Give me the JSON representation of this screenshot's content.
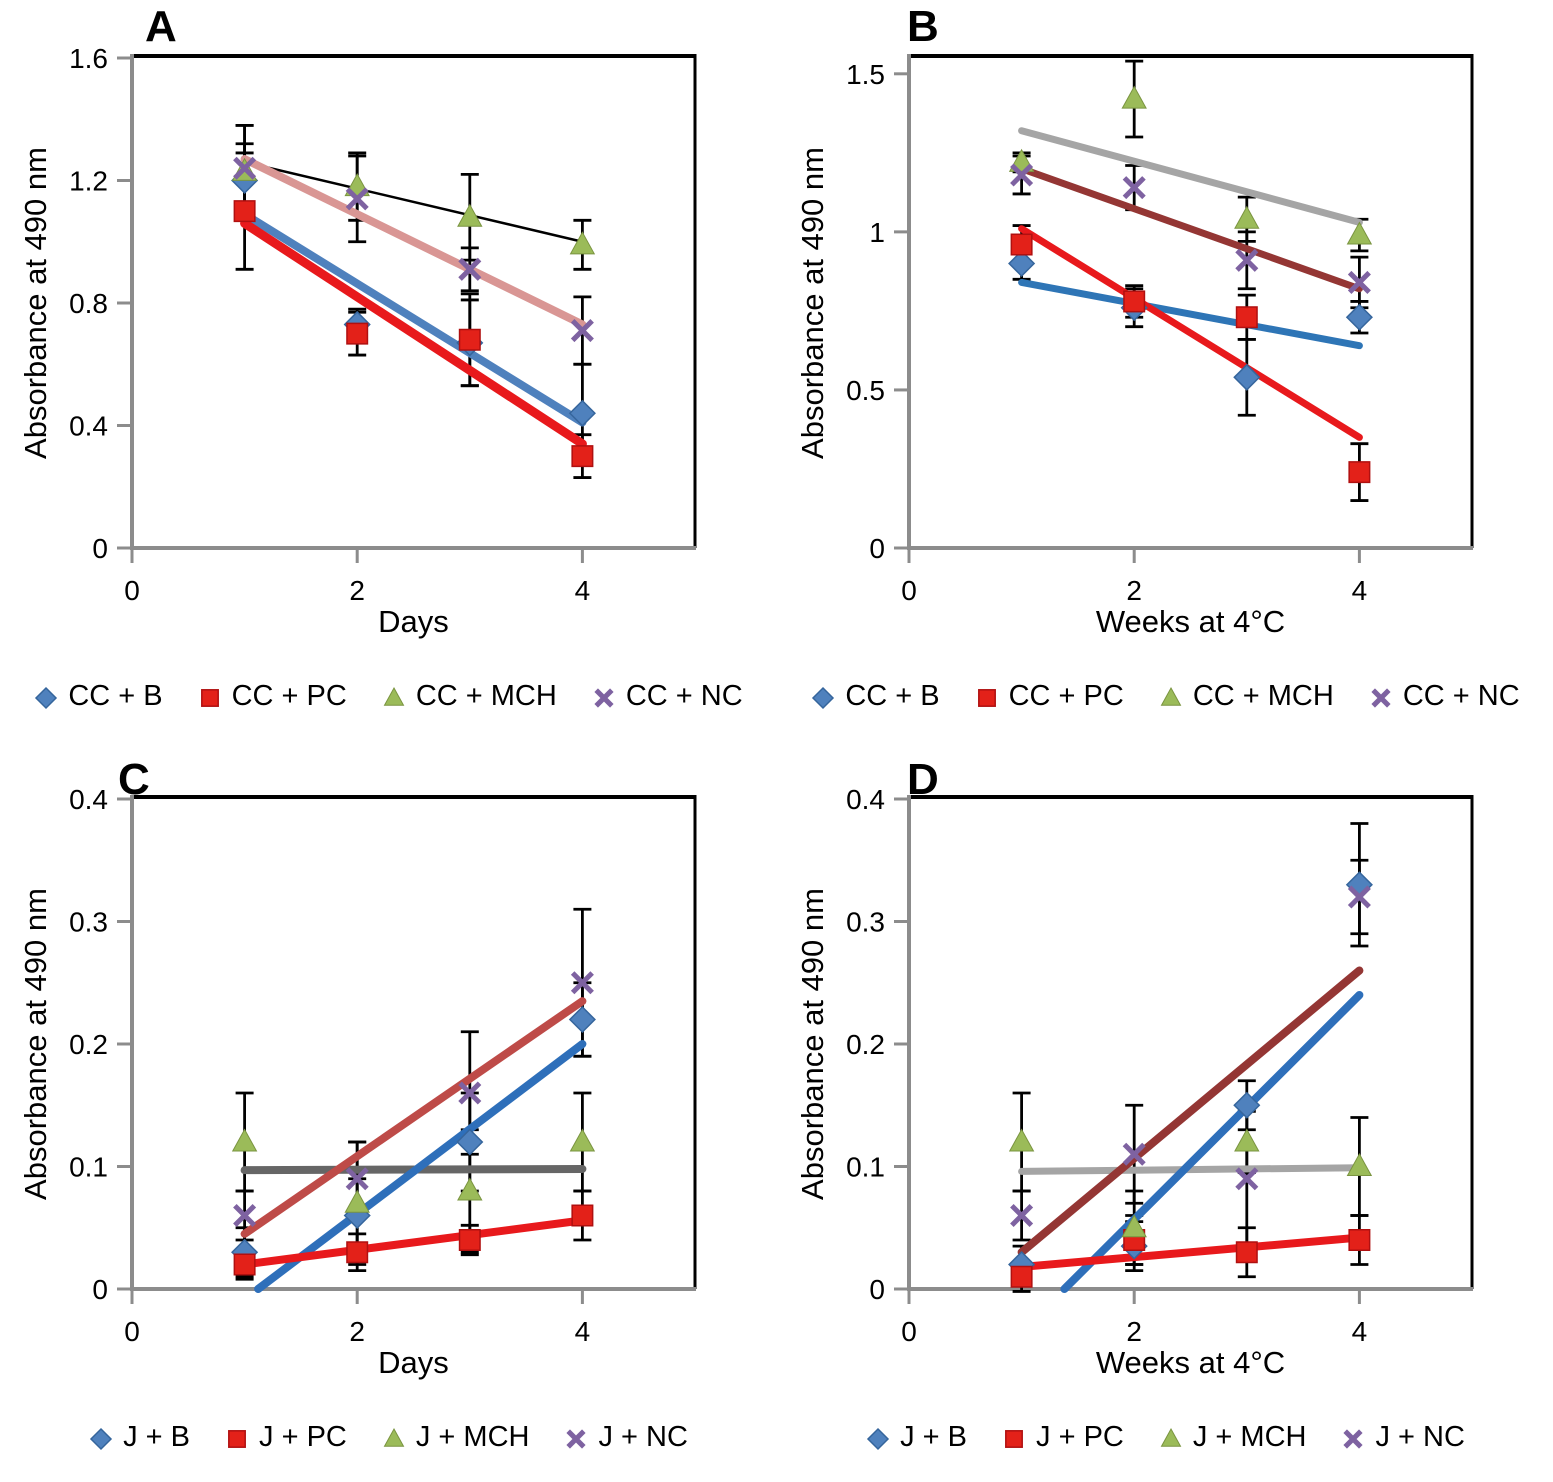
{
  "figure": {
    "background": "#ffffff",
    "axis_color": "#8c8c8c",
    "border_color": "#000000",
    "error_bar_color": "#000000"
  },
  "chart_data": [
    {
      "panel_label": "A",
      "type": "scatter",
      "xlabel": "Days",
      "ylabel": "Absorbance at 490 nm",
      "xlim": [
        0,
        5
      ],
      "ylim": [
        0,
        1.6
      ],
      "xticks": {
        "values": [
          0,
          2,
          4
        ],
        "labels": [
          "0",
          "2",
          "4"
        ]
      },
      "yticks": {
        "values": [
          0,
          0.4,
          0.8,
          1.2,
          1.6
        ],
        "labels": [
          "0",
          "0.4",
          "0.8",
          "1.2",
          "1.6"
        ]
      },
      "x": [
        1,
        2,
        3,
        4
      ],
      "series": [
        {
          "name": "CC + B",
          "marker": "diamond",
          "color": "#4f81bd",
          "edge": "#35659c",
          "values": [
            1.2,
            0.73,
            0.67,
            0.44
          ],
          "errors": [
            0.12,
            0.05,
            0.14,
            0.16
          ]
        },
        {
          "name": "CC + PC",
          "marker": "square",
          "color": "#e32119",
          "edge": "#b01010",
          "values": [
            1.1,
            0.7,
            0.68,
            0.3
          ],
          "errors": [
            0.19,
            0.07,
            0.15,
            0.07
          ]
        },
        {
          "name": "CC + MCH",
          "marker": "triangle",
          "color": "#9bbb59",
          "edge": "#7a9440",
          "values": [
            1.23,
            1.18,
            1.08,
            0.99
          ],
          "errors": [
            0.15,
            0.11,
            0.14,
            0.08
          ]
        },
        {
          "name": "CC + NC",
          "marker": "x",
          "color": "#7e62a1",
          "edge": "#7e62a1",
          "values": [
            1.24,
            1.14,
            0.91,
            0.71
          ],
          "errors": [
            0.14,
            0.14,
            0.07,
            0.11
          ]
        }
      ],
      "trendlines": [
        {
          "series": "CC + MCH",
          "color": "#000000",
          "width": 2.5,
          "x1": 1,
          "y1": 1.26,
          "x2": 4,
          "y2": 1.0
        },
        {
          "series": "CC + NC",
          "color": "#d99694",
          "width": 8,
          "x1": 1,
          "y1": 1.27,
          "x2": 4,
          "y2": 0.73
        },
        {
          "series": "CC + B",
          "color": "#4f81bd",
          "width": 8,
          "x1": 1,
          "y1": 1.09,
          "x2": 4,
          "y2": 0.41
        },
        {
          "series": "CC + PC",
          "color": "#e8191c",
          "width": 9,
          "x1": 1,
          "y1": 1.06,
          "x2": 4,
          "y2": 0.34
        }
      ]
    },
    {
      "panel_label": "B",
      "type": "scatter",
      "xlabel": "Weeks at 4°C",
      "ylabel": "Absorbance at 490 nm",
      "xlim": [
        0,
        5
      ],
      "ylim": [
        0,
        1.55
      ],
      "xticks": {
        "values": [
          0,
          2,
          4
        ],
        "labels": [
          "0",
          "2",
          "4"
        ]
      },
      "yticks": {
        "values": [
          0,
          0.5,
          1,
          1.5
        ],
        "labels": [
          "0",
          "0.5",
          "1",
          "1.5"
        ]
      },
      "x": [
        1,
        2,
        3,
        4
      ],
      "series": [
        {
          "name": "CC + B",
          "marker": "diamond",
          "color": "#4f81bd",
          "edge": "#35659c",
          "values": [
            0.9,
            0.76,
            0.54,
            0.73
          ],
          "errors": [
            0.05,
            0.06,
            0.12,
            0.05
          ]
        },
        {
          "name": "CC + PC",
          "marker": "square",
          "color": "#e32119",
          "edge": "#b01010",
          "values": [
            0.96,
            0.78,
            0.73,
            0.24
          ],
          "errors": [
            0.06,
            0.05,
            0.07,
            0.09
          ]
        },
        {
          "name": "CC + MCH",
          "marker": "triangle",
          "color": "#9bbb59",
          "edge": "#7a9440",
          "values": [
            1.22,
            1.42,
            1.04,
            0.99
          ],
          "errors": [
            0.03,
            0.12,
            0.07,
            0.05
          ]
        },
        {
          "name": "CC + NC",
          "marker": "x",
          "color": "#7e62a1",
          "edge": "#7e62a1",
          "values": [
            1.18,
            1.14,
            0.91,
            0.84
          ],
          "errors": [
            0.06,
            0.07,
            0.09,
            0.08
          ]
        }
      ],
      "trendlines": [
        {
          "series": "CC + MCH",
          "color": "#a5a5a5",
          "width": 7,
          "x1": 1,
          "y1": 1.32,
          "x2": 4,
          "y2": 1.03
        },
        {
          "series": "CC + NC",
          "color": "#943634",
          "width": 7,
          "x1": 1,
          "y1": 1.2,
          "x2": 4,
          "y2": 0.82
        },
        {
          "series": "CC + B",
          "color": "#2e75b6",
          "width": 7,
          "x1": 1,
          "y1": 0.84,
          "x2": 4,
          "y2": 0.64
        },
        {
          "series": "CC + PC",
          "color": "#e8191c",
          "width": 7,
          "x1": 1,
          "y1": 1.01,
          "x2": 4,
          "y2": 0.35
        }
      ]
    },
    {
      "panel_label": "C",
      "type": "scatter",
      "xlabel": "Days",
      "ylabel": "Absorbance at 490 nm",
      "xlim": [
        0,
        5
      ],
      "ylim": [
        0,
        0.4
      ],
      "xticks": {
        "values": [
          0,
          2,
          4
        ],
        "labels": [
          "0",
          "2",
          "4"
        ]
      },
      "yticks": {
        "values": [
          0,
          0.1,
          0.2,
          0.3,
          0.4
        ],
        "labels": [
          "0",
          "0.1",
          "0.2",
          "0.3",
          "0.4"
        ]
      },
      "x": [
        1,
        2,
        3,
        4
      ],
      "series": [
        {
          "name": "J + B",
          "marker": "diamond",
          "color": "#4f81bd",
          "edge": "#35659c",
          "values": [
            0.03,
            0.06,
            0.12,
            0.22
          ],
          "errors": [
            0.02,
            0.03,
            0.04,
            0.03
          ]
        },
        {
          "name": "J + PC",
          "marker": "square",
          "color": "#e32119",
          "edge": "#b01010",
          "values": [
            0.02,
            0.03,
            0.04,
            0.06
          ],
          "errors": [
            0.012,
            0.015,
            0.012,
            0.02
          ]
        },
        {
          "name": "J + MCH",
          "marker": "triangle",
          "color": "#9bbb59",
          "edge": "#7a9440",
          "values": [
            0.12,
            0.07,
            0.08,
            0.12
          ],
          "errors": [
            0.04,
            0.05,
            0.05,
            0.04
          ]
        },
        {
          "name": "J + NC",
          "marker": "x",
          "color": "#7e62a1",
          "edge": "#7e62a1",
          "values": [
            0.06,
            0.09,
            0.16,
            0.25
          ],
          "errors": [
            0.02,
            0.03,
            0.05,
            0.06
          ]
        }
      ],
      "trendlines": [
        {
          "series": "J + MCH",
          "color": "#666666",
          "width": 8,
          "x1": 1,
          "y1": 0.097,
          "x2": 4,
          "y2": 0.098
        },
        {
          "series": "J + NC",
          "color": "#be4b48",
          "width": 8,
          "x1": 1,
          "y1": 0.045,
          "x2": 4,
          "y2": 0.235
        },
        {
          "series": "J + B",
          "color": "#2e6fba",
          "width": 8,
          "x1": 1.12,
          "y1": 0.0,
          "x2": 4,
          "y2": 0.2
        },
        {
          "series": "J + PC",
          "color": "#e8191c",
          "width": 8,
          "x1": 1,
          "y1": 0.02,
          "x2": 4,
          "y2": 0.056
        }
      ]
    },
    {
      "panel_label": "D",
      "type": "scatter",
      "xlabel": "Weeks at 4°C",
      "ylabel": "Absorbance at 490 nm",
      "xlim": [
        0,
        5
      ],
      "ylim": [
        0,
        0.4
      ],
      "xticks": {
        "values": [
          0,
          2,
          4
        ],
        "labels": [
          "0",
          "2",
          "4"
        ]
      },
      "yticks": {
        "values": [
          0,
          0.1,
          0.2,
          0.3,
          0.4
        ],
        "labels": [
          "0",
          "0.1",
          "0.2",
          "0.3",
          "0.4"
        ]
      },
      "x": [
        1,
        2,
        3,
        4
      ],
      "series": [
        {
          "name": "J + B",
          "marker": "diamond",
          "color": "#4f81bd",
          "edge": "#35659c",
          "values": [
            0.02,
            0.035,
            0.15,
            0.33
          ],
          "errors": [
            0.015,
            0.02,
            0.02,
            0.05
          ]
        },
        {
          "name": "J + PC",
          "marker": "square",
          "color": "#e32119",
          "edge": "#b01010",
          "values": [
            0.01,
            0.04,
            0.03,
            0.04
          ],
          "errors": [
            0.012,
            0.02,
            0.02,
            0.02
          ]
        },
        {
          "name": "J + MCH",
          "marker": "triangle",
          "color": "#9bbb59",
          "edge": "#7a9440",
          "values": [
            0.12,
            0.05,
            0.12,
            0.1
          ],
          "errors": [
            0.04,
            0.03,
            0.025,
            0.04
          ]
        },
        {
          "name": "J + NC",
          "marker": "x",
          "color": "#7e62a1",
          "edge": "#7e62a1",
          "values": [
            0.06,
            0.11,
            0.09,
            0.32
          ],
          "errors": [
            0.02,
            0.04,
            0.06,
            0.03
          ]
        }
      ],
      "trendlines": [
        {
          "series": "J + MCH",
          "color": "#a5a5a5",
          "width": 7,
          "x1": 1,
          "y1": 0.096,
          "x2": 4,
          "y2": 0.099
        },
        {
          "series": "J + NC",
          "color": "#943634",
          "width": 8,
          "x1": 1,
          "y1": 0.03,
          "x2": 4,
          "y2": 0.26
        },
        {
          "series": "J + B",
          "color": "#2e6fba",
          "width": 8,
          "x1": 1.38,
          "y1": 0.0,
          "x2": 4,
          "y2": 0.24
        },
        {
          "series": "J + PC",
          "color": "#e8191c",
          "width": 8,
          "x1": 1,
          "y1": 0.018,
          "x2": 4,
          "y2": 0.042
        }
      ]
    }
  ]
}
